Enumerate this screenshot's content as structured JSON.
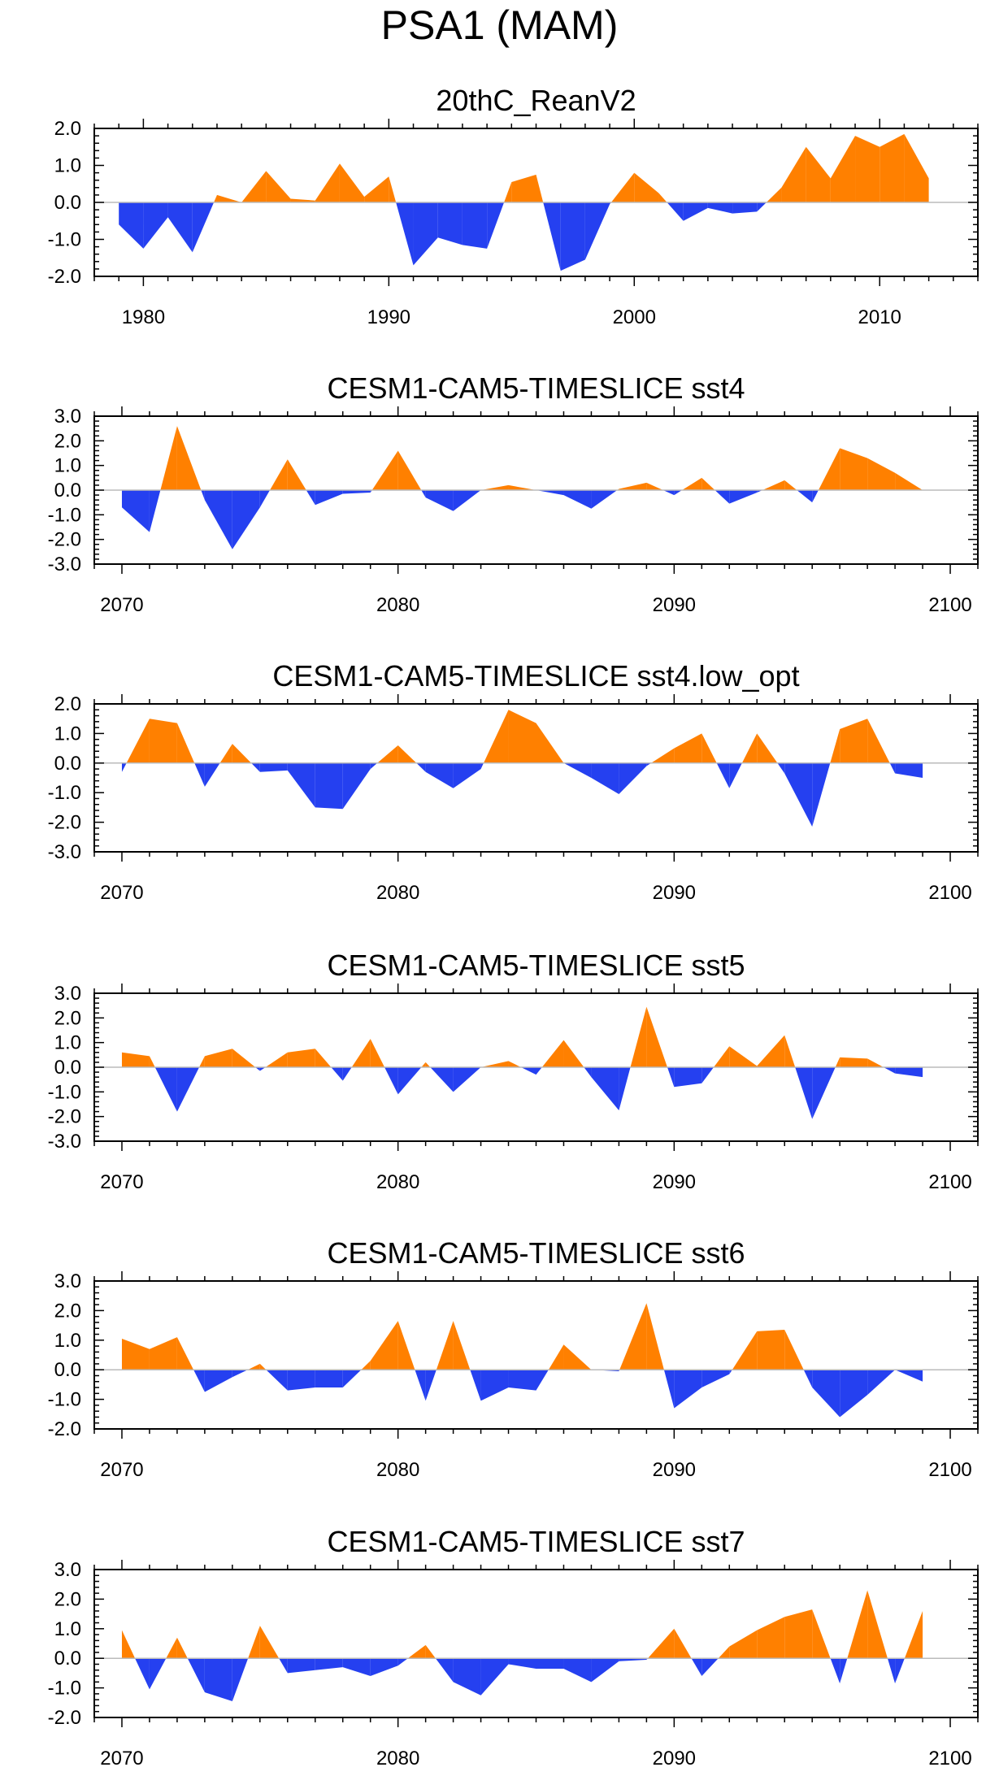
{
  "title": "PSA1 (MAM)",
  "colors": {
    "positive": "#ff8000",
    "negative": "#2540f0",
    "axis": "#000000",
    "zero_line": "#bbbbbb"
  },
  "chart_data": [
    {
      "type": "area",
      "title": "20thC_ReanV2",
      "xlim": [
        1978,
        2014
      ],
      "ylim": [
        -2.0,
        2.0
      ],
      "yticks": [
        2.0,
        1.0,
        0.0,
        -1.0,
        -2.0
      ],
      "ytick_labels": [
        "2.0",
        "1.0",
        "0.0",
        "-1.0",
        "-2.0"
      ],
      "xticks": [
        1980,
        1990,
        2000,
        2010
      ],
      "xtick_labels": [
        "1980",
        "1990",
        "2000",
        "2010"
      ],
      "x": [
        1979,
        1980,
        1981,
        1982,
        1983,
        1984,
        1985,
        1986,
        1987,
        1988,
        1989,
        1990,
        1991,
        1992,
        1993,
        1994,
        1995,
        1996,
        1997,
        1998,
        1999,
        2000,
        2001,
        2002,
        2003,
        2004,
        2005,
        2006,
        2007,
        2008,
        2009,
        2010,
        2011,
        2012
      ],
      "values": [
        -0.6,
        -1.25,
        -0.4,
        -1.35,
        0.2,
        0.0,
        0.85,
        0.1,
        0.05,
        1.05,
        0.15,
        0.7,
        -1.7,
        -0.95,
        -1.15,
        -1.25,
        0.55,
        0.75,
        -1.85,
        -1.55,
        -0.05,
        0.8,
        0.25,
        -0.5,
        -0.15,
        -0.3,
        -0.25,
        0.4,
        1.5,
        0.65,
        1.8,
        1.5,
        1.85,
        0.65
      ]
    },
    {
      "type": "area",
      "title": "CESM1-CAM5-TIMESLICE sst4",
      "xlim": [
        2069,
        2101
      ],
      "ylim": [
        -3.0,
        3.0
      ],
      "yticks": [
        3.0,
        2.0,
        1.0,
        0.0,
        -1.0,
        -2.0,
        -3.0
      ],
      "ytick_labels": [
        "3.0",
        "2.0",
        "1.0",
        "0.0",
        "-1.0",
        "-2.0",
        "-3.0"
      ],
      "xticks": [
        2070,
        2080,
        2090,
        2100
      ],
      "xtick_labels": [
        "2070",
        "2080",
        "2090",
        "2100"
      ],
      "x": [
        2070,
        2071,
        2072,
        2073,
        2074,
        2075,
        2076,
        2077,
        2078,
        2079,
        2080,
        2081,
        2082,
        2083,
        2084,
        2085,
        2086,
        2087,
        2088,
        2089,
        2090,
        2091,
        2092,
        2093,
        2094,
        2095,
        2096,
        2097,
        2098,
        2099
      ],
      "values": [
        -0.7,
        -1.7,
        2.6,
        -0.4,
        -2.4,
        -0.7,
        1.25,
        -0.6,
        -0.15,
        -0.1,
        1.6,
        -0.3,
        -0.85,
        0.0,
        0.2,
        0.0,
        -0.2,
        -0.75,
        0.05,
        0.3,
        -0.2,
        0.5,
        -0.55,
        -0.1,
        0.4,
        -0.5,
        1.7,
        1.3,
        0.7,
        0.0
      ]
    },
    {
      "type": "area",
      "title": "CESM1-CAM5-TIMESLICE sst4.low_opt",
      "xlim": [
        2069,
        2101
      ],
      "ylim": [
        -3.0,
        2.0
      ],
      "yticks": [
        2.0,
        1.0,
        0.0,
        -1.0,
        -2.0,
        -3.0
      ],
      "ytick_labels": [
        "2.0",
        "1.0",
        "0.0",
        "-1.0",
        "-2.0",
        "-3.0"
      ],
      "xticks": [
        2070,
        2080,
        2090,
        2100
      ],
      "xtick_labels": [
        "2070",
        "2080",
        "2090",
        "2100"
      ],
      "x": [
        2070,
        2071,
        2072,
        2073,
        2074,
        2075,
        2076,
        2077,
        2078,
        2079,
        2080,
        2081,
        2082,
        2083,
        2084,
        2085,
        2086,
        2087,
        2088,
        2089,
        2090,
        2091,
        2092,
        2093,
        2094,
        2095,
        2096,
        2097,
        2098,
        2099
      ],
      "values": [
        -0.3,
        1.5,
        1.35,
        -0.8,
        0.65,
        -0.3,
        -0.25,
        -1.5,
        -1.55,
        -0.2,
        0.6,
        -0.3,
        -0.85,
        -0.2,
        1.8,
        1.35,
        0.0,
        -0.5,
        -1.05,
        -0.1,
        0.5,
        1.0,
        -0.85,
        1.0,
        -0.35,
        -2.15,
        1.15,
        1.5,
        -0.35,
        -0.5
      ]
    },
    {
      "type": "area",
      "title": "CESM1-CAM5-TIMESLICE sst5",
      "xlim": [
        2069,
        2101
      ],
      "ylim": [
        -3.0,
        3.0
      ],
      "yticks": [
        3.0,
        2.0,
        1.0,
        0.0,
        -1.0,
        -2.0,
        -3.0
      ],
      "ytick_labels": [
        "3.0",
        "2.0",
        "1.0",
        "0.0",
        "-1.0",
        "-2.0",
        "-3.0"
      ],
      "xticks": [
        2070,
        2080,
        2090,
        2100
      ],
      "xtick_labels": [
        "2070",
        "2080",
        "2090",
        "2100"
      ],
      "x": [
        2070,
        2071,
        2072,
        2073,
        2074,
        2075,
        2076,
        2077,
        2078,
        2079,
        2080,
        2081,
        2082,
        2083,
        2084,
        2085,
        2086,
        2087,
        2088,
        2089,
        2090,
        2091,
        2092,
        2093,
        2094,
        2095,
        2096,
        2097,
        2098,
        2099
      ],
      "values": [
        0.6,
        0.45,
        -1.8,
        0.45,
        0.75,
        -0.15,
        0.6,
        0.75,
        -0.55,
        1.15,
        -1.1,
        0.2,
        -1.0,
        0.0,
        0.25,
        -0.3,
        1.1,
        -0.4,
        -1.75,
        2.45,
        -0.8,
        -0.65,
        0.85,
        0.05,
        1.3,
        -2.1,
        0.4,
        0.35,
        -0.25,
        -0.4
      ]
    },
    {
      "type": "area",
      "title": "CESM1-CAM5-TIMESLICE sst6",
      "xlim": [
        2069,
        2101
      ],
      "ylim": [
        -2.0,
        3.0
      ],
      "yticks": [
        3.0,
        2.0,
        1.0,
        0.0,
        -1.0,
        -2.0
      ],
      "ytick_labels": [
        "3.0",
        "2.0",
        "1.0",
        "0.0",
        "-1.0",
        "-2.0"
      ],
      "xticks": [
        2070,
        2080,
        2090,
        2100
      ],
      "xtick_labels": [
        "2070",
        "2080",
        "2090",
        "2100"
      ],
      "x": [
        2070,
        2071,
        2072,
        2073,
        2074,
        2075,
        2076,
        2077,
        2078,
        2079,
        2080,
        2081,
        2082,
        2083,
        2084,
        2085,
        2086,
        2087,
        2088,
        2089,
        2090,
        2091,
        2092,
        2093,
        2094,
        2095,
        2096,
        2097,
        2098,
        2099
      ],
      "values": [
        1.05,
        0.7,
        1.1,
        -0.75,
        -0.25,
        0.2,
        -0.7,
        -0.6,
        -0.6,
        0.3,
        1.65,
        -1.05,
        1.65,
        -1.05,
        -0.6,
        -0.7,
        0.85,
        0.0,
        -0.05,
        2.25,
        -1.3,
        -0.6,
        -0.15,
        1.3,
        1.35,
        -0.6,
        -1.6,
        -0.85,
        0.0,
        -0.4
      ]
    },
    {
      "type": "area",
      "title": "CESM1-CAM5-TIMESLICE sst7",
      "xlim": [
        2069,
        2101
      ],
      "ylim": [
        -2.0,
        3.0
      ],
      "yticks": [
        3.0,
        2.0,
        1.0,
        0.0,
        -1.0,
        -2.0
      ],
      "ytick_labels": [
        "3.0",
        "2.0",
        "1.0",
        "0.0",
        "-1.0",
        "-2.0"
      ],
      "xticks": [
        2070,
        2080,
        2090,
        2100
      ],
      "xtick_labels": [
        "2070",
        "2080",
        "2090",
        "2100"
      ],
      "x": [
        2070,
        2071,
        2072,
        2073,
        2074,
        2075,
        2076,
        2077,
        2078,
        2079,
        2080,
        2081,
        2082,
        2083,
        2084,
        2085,
        2086,
        2087,
        2088,
        2089,
        2090,
        2091,
        2092,
        2093,
        2094,
        2095,
        2096,
        2097,
        2098,
        2099
      ],
      "values": [
        0.95,
        -1.05,
        0.7,
        -1.15,
        -1.45,
        1.1,
        -0.5,
        -0.4,
        -0.3,
        -0.6,
        -0.25,
        0.45,
        -0.8,
        -1.25,
        -0.2,
        -0.35,
        -0.35,
        -0.8,
        -0.1,
        -0.05,
        1.0,
        -0.6,
        0.4,
        0.95,
        1.4,
        1.65,
        -0.85,
        2.3,
        -0.85,
        1.6
      ]
    }
  ]
}
